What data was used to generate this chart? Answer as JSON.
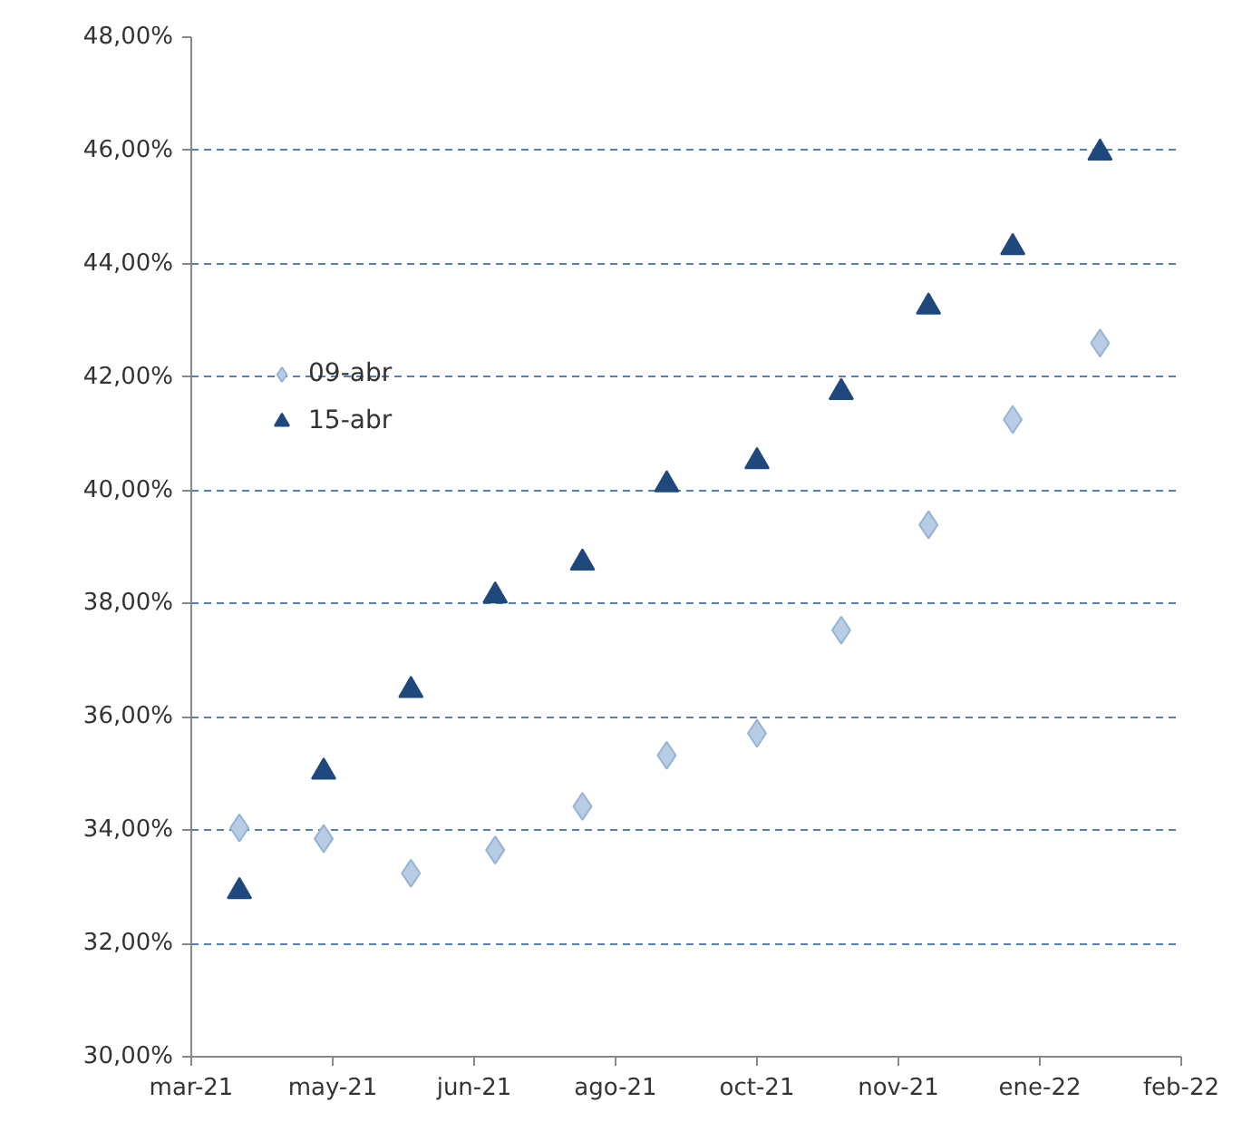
{
  "chart_data": {
    "type": "scatter",
    "legend": "top left",
    "grid": "y",
    "xlim": [
      "2021-03-27",
      "2022-02-19"
    ],
    "xticks": [
      {
        "value": "2021-03-27",
        "label": "mar-21"
      },
      {
        "value": "2021-05-13",
        "label": "may-21"
      },
      {
        "value": "2021-06-29",
        "label": "jun-21"
      },
      {
        "value": "2021-08-15",
        "label": "ago-21"
      },
      {
        "value": "2021-10-01",
        "label": "oct-21"
      },
      {
        "value": "2021-11-17",
        "label": "nov-21"
      },
      {
        "value": "2022-01-03",
        "label": "ene-22"
      },
      {
        "value": "2022-02-19",
        "label": "feb-22"
      }
    ],
    "ylim": [
      30,
      48
    ],
    "yticks": [
      {
        "value": 30,
        "label": "30,00%"
      },
      {
        "value": 32,
        "label": "32,00%"
      },
      {
        "value": 34,
        "label": "34,00%"
      },
      {
        "value": 36,
        "label": "36,00%"
      },
      {
        "value": 38,
        "label": "38,00%"
      },
      {
        "value": 40,
        "label": "40,00%"
      },
      {
        "value": 42,
        "label": "42,00%"
      },
      {
        "value": 44,
        "label": "44,00%"
      },
      {
        "value": 46,
        "label": "46,00%"
      },
      {
        "value": 48,
        "label": "48,00%"
      }
    ],
    "x": [
      "2021-04-12",
      "2021-05-10",
      "2021-06-08",
      "2021-07-06",
      "2021-08-04",
      "2021-09-01",
      "2021-10-01",
      "2021-10-29",
      "2021-11-27",
      "2021-12-25",
      "2022-01-23"
    ],
    "series": [
      {
        "name": "09-abr",
        "color": "#b8cce4",
        "marker": "diamond",
        "values": [
          34.04,
          33.85,
          33.24,
          33.65,
          34.42,
          35.32,
          35.71,
          37.53,
          39.39,
          41.25,
          42.6
        ]
      },
      {
        "name": "15-abr",
        "color": "#1f497d",
        "marker": "triangle",
        "values": [
          32.92,
          35.03,
          36.47,
          38.14,
          38.72,
          40.1,
          40.51,
          41.73,
          43.24,
          44.29,
          45.96
        ]
      }
    ]
  }
}
